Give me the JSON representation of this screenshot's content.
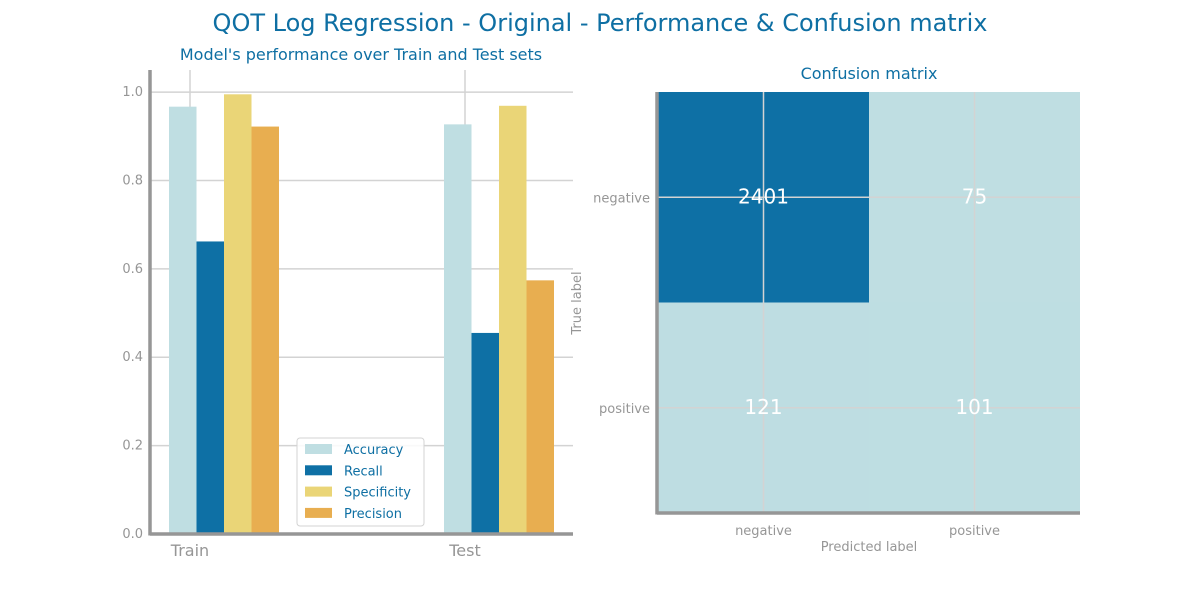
{
  "figure": {
    "title": "QOT Log Regression - Original - Performance & Confusion matrix"
  },
  "colors": {
    "title": "#0e6fa3",
    "axis": "#969696",
    "tick_text": "#969696",
    "grid": "#d3d3d3",
    "accuracy": "#bfdee2",
    "recall": "#0e70a5",
    "specificity": "#ead577",
    "precision": "#e8ae50",
    "cm_low": "#bfdee2",
    "cm_high": "#0e70a5",
    "cm_text": "#ffffff"
  },
  "chart_data": [
    {
      "type": "bar",
      "title": "Model's performance over Train and Test sets",
      "xlabel": "",
      "ylabel": "",
      "categories": [
        "Train",
        "Test"
      ],
      "ylim": [
        0,
        1.05
      ],
      "yticks": [
        0.0,
        0.2,
        0.4,
        0.6,
        0.8,
        1.0
      ],
      "ytick_labels": [
        "0.0",
        "0.2",
        "0.4",
        "0.6",
        "0.8",
        "1.0"
      ],
      "grid": true,
      "legend_position": "lower-right",
      "series": [
        {
          "name": "Accuracy",
          "color": "#bfdee2",
          "values": [
            0.967,
            0.927
          ]
        },
        {
          "name": "Recall",
          "color": "#0e70a5",
          "values": [
            0.662,
            0.455
          ]
        },
        {
          "name": "Specificity",
          "color": "#ead577",
          "values": [
            0.995,
            0.969
          ]
        },
        {
          "name": "Precision",
          "color": "#e8ae50",
          "values": [
            0.922,
            0.574
          ]
        }
      ]
    },
    {
      "type": "heatmap",
      "title": "Confusion matrix",
      "xlabel": "Predicted label",
      "ylabel": "True label",
      "x_categories": [
        "negative",
        "positive"
      ],
      "y_categories": [
        "negative",
        "positive"
      ],
      "matrix": [
        [
          2401,
          75
        ],
        [
          121,
          101
        ]
      ],
      "grid": true
    }
  ]
}
